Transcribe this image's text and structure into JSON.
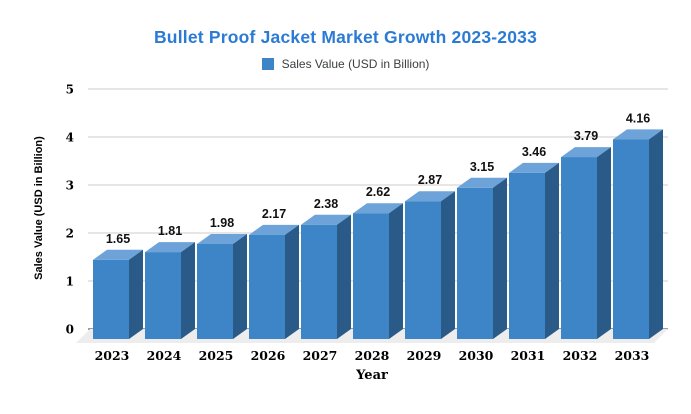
{
  "chart": {
    "title": "Bullet Proof Jacket Market Growth 2023-2033",
    "title_color": "#2b7bd4",
    "legend": {
      "label": "Sales Value (USD in Billion)",
      "swatch_color": "#3d85c6"
    },
    "xlabel": "Year",
    "ylabel": "Sales Value (USD in Billion)"
  },
  "chart_data": {
    "type": "bar",
    "title": "Bullet Proof Jacket Market Growth 2023-2033",
    "series_name": "Sales Value (USD in Billion)",
    "categories": [
      "2023",
      "2024",
      "2025",
      "2026",
      "2027",
      "2028",
      "2029",
      "2030",
      "2031",
      "2032",
      "2033"
    ],
    "values": [
      1.65,
      1.81,
      1.98,
      2.17,
      2.38,
      2.62,
      2.87,
      3.15,
      3.46,
      3.79,
      4.16
    ],
    "xlabel": "Year",
    "ylabel": "Sales Value (USD in Billion)",
    "ylim": [
      0,
      5
    ],
    "yticks": [
      0,
      1,
      2,
      3,
      4,
      5
    ],
    "grid": true,
    "legend_position": "top",
    "style": "3d-bar",
    "colors": {
      "bar_front": "#3d85c6",
      "bar_top": "#6da3d8",
      "bar_side": "#2a5a88",
      "gridline": "#cccccc",
      "baseline": "#3c3c3c",
      "floor": "#ededed",
      "value_label": "#111111",
      "tick_label": "#000000"
    }
  }
}
